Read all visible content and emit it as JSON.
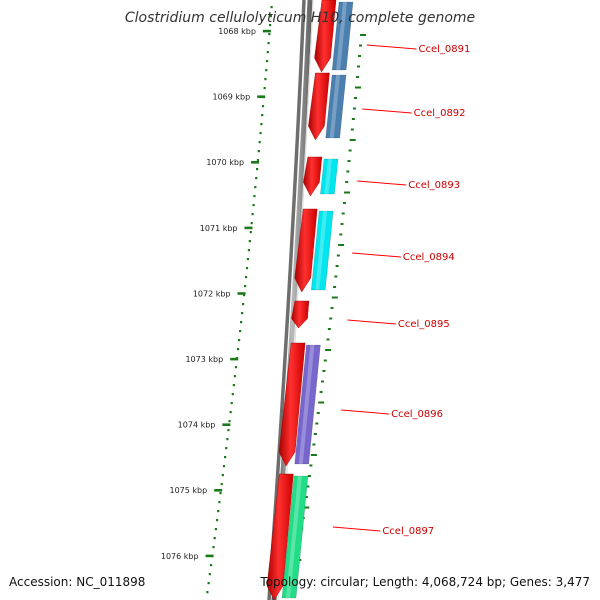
{
  "title": "Clostridium cellulolyticum H10, complete genome",
  "accession_text": "Accession: NC_011898",
  "summary_text": "Topology: circular; Length: 4,068,724 bp; Genes: 3,477",
  "colors": {
    "forward_cds": "#ff0000",
    "label": "#cc0000",
    "tick": "#1a7a1a",
    "backbone": "#777777",
    "cog_blue": "#4a7fb0",
    "cog_cyan": "#00e5ee",
    "cog_purple": "#7766cc",
    "cog_green": "#22dd88"
  },
  "ticks": [
    "1068 kbp",
    "1069 kbp",
    "1070 kbp",
    "1071 kbp",
    "1072 kbp",
    "1073 kbp",
    "1074 kbp",
    "1075 kbp",
    "1076 kbp"
  ],
  "genes": [
    {
      "id": "Ccel_0891",
      "cog_color": "#4a7fb0"
    },
    {
      "id": "Ccel_0892",
      "cog_color": "#4a7fb0"
    },
    {
      "id": "Ccel_0893",
      "cog_color": "#00e5ee"
    },
    {
      "id": "Ccel_0894",
      "cog_color": "#00e5ee"
    },
    {
      "id": "Ccel_0895",
      "cog_color": ""
    },
    {
      "id": "Ccel_0896",
      "cog_color": "#7766cc"
    },
    {
      "id": "Ccel_0897",
      "cog_color": "#22dd88"
    }
  ]
}
